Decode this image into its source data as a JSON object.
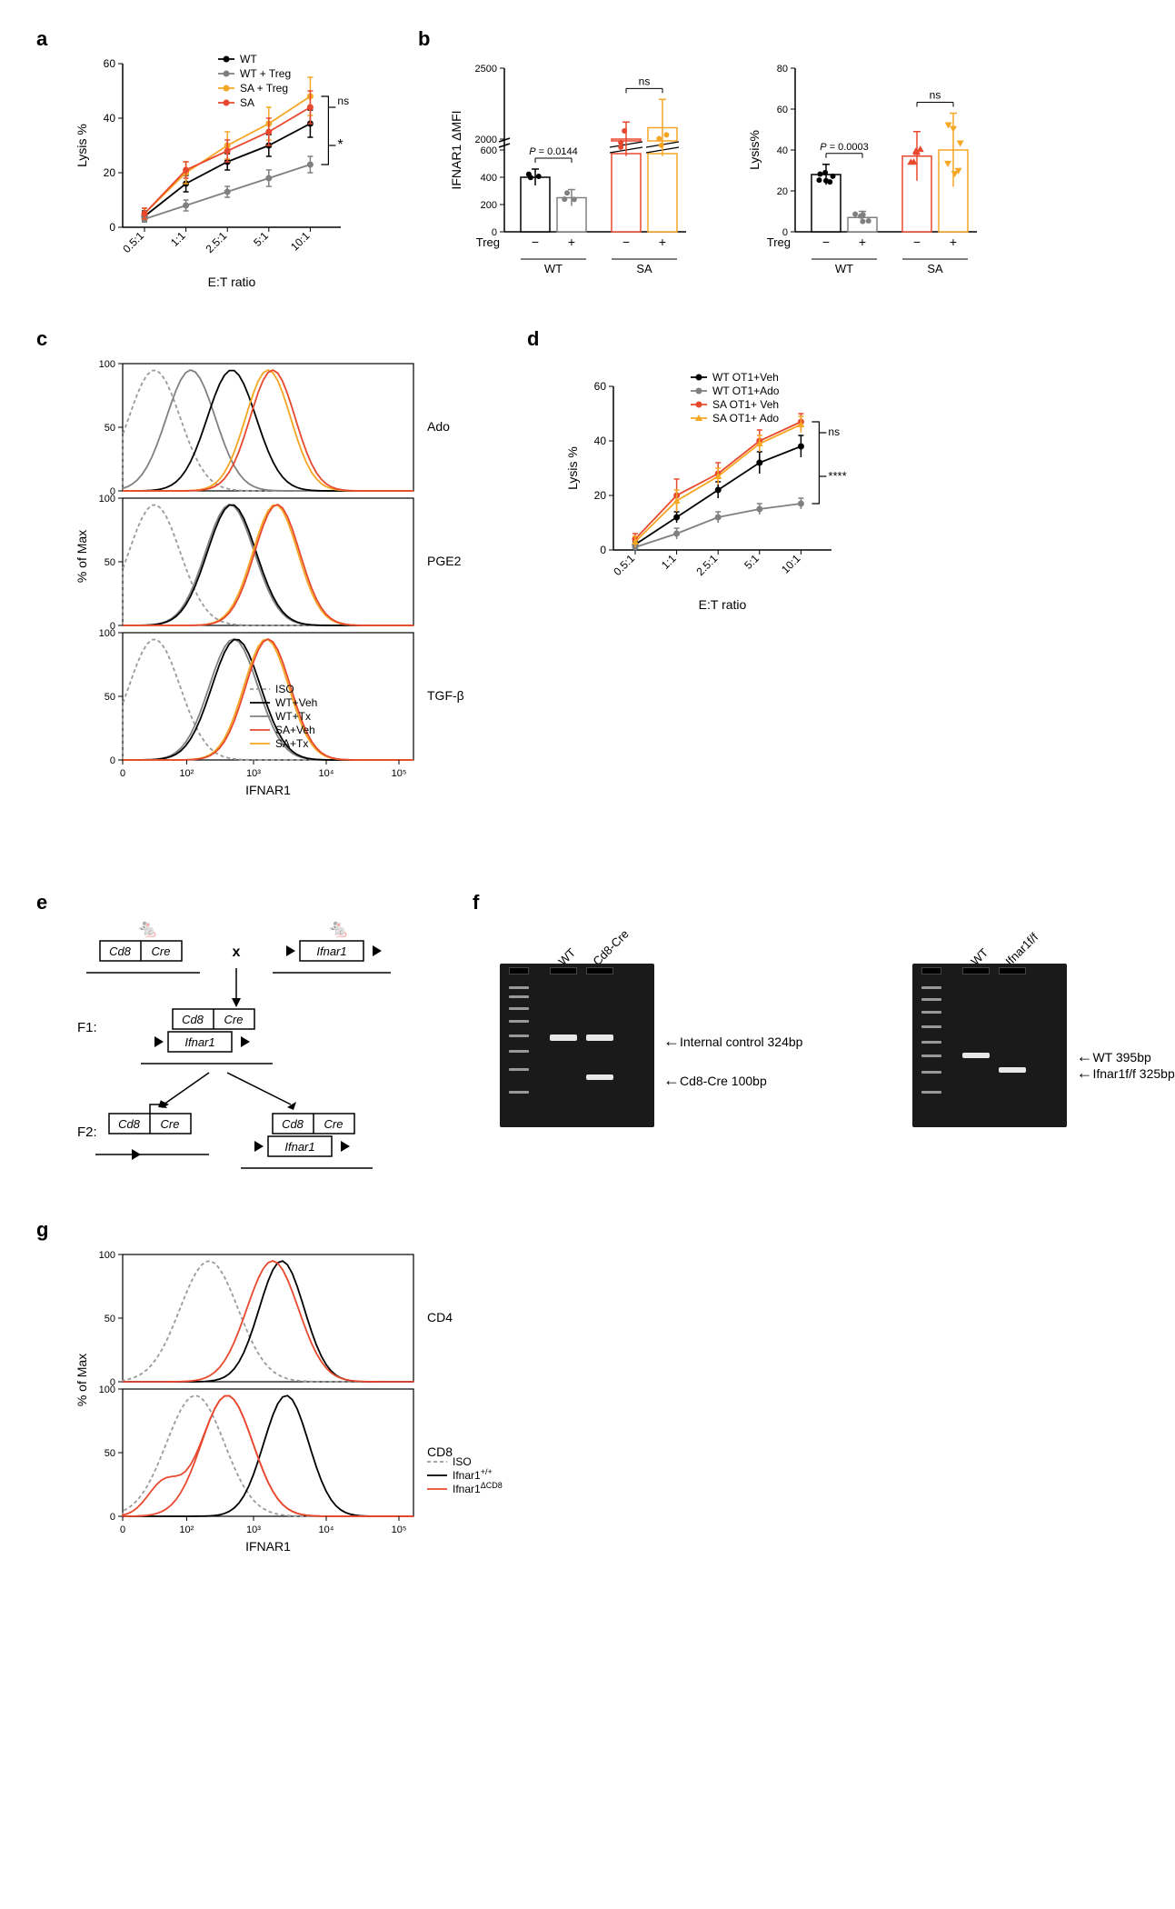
{
  "colors": {
    "wt": "#000000",
    "wt_treg": "#808080",
    "sa": "#e8492e",
    "sa_treg": "#f5a623",
    "iso": "#9a9a9a",
    "ifnar_wt": "#000000",
    "ifnar_ko": "#e8492e",
    "bar_outline": "#000000"
  },
  "panel_a": {
    "label": "a",
    "type": "line",
    "x_categories": [
      "0.5:1",
      "1:1",
      "2.5:1",
      "5:1",
      "10:1"
    ],
    "xlabel": "E:T ratio",
    "ylabel": "Lysis %",
    "ylim": [
      0,
      60
    ],
    "ytick_step": 20,
    "series": [
      {
        "name": "WT",
        "color": "#000000",
        "marker": "circle",
        "values": [
          4,
          16,
          24,
          30,
          38
        ],
        "err": [
          2,
          3,
          3,
          4,
          5
        ]
      },
      {
        "name": "WT + Treg",
        "color": "#808080",
        "marker": "circle",
        "values": [
          3,
          8,
          13,
          18,
          23
        ],
        "err": [
          1,
          2,
          2,
          3,
          3
        ]
      },
      {
        "name": "SA + Treg",
        "color": "#f5a623",
        "marker": "circle",
        "values": [
          5,
          20,
          30,
          38,
          48
        ],
        "err": [
          2,
          4,
          5,
          6,
          7
        ]
      },
      {
        "name": "SA",
        "color": "#e8492e",
        "marker": "circle",
        "values": [
          5,
          21,
          28,
          35,
          44
        ],
        "err": [
          2,
          3,
          4,
          5,
          6
        ]
      }
    ],
    "annotations": [
      {
        "text": "ns",
        "y_pos": "top"
      },
      {
        "text": "*",
        "y_pos": "bottom"
      }
    ]
  },
  "panel_b": {
    "label": "b",
    "left": {
      "type": "bar",
      "ylabel": "IFNAR1 ΔMFI",
      "ylim": [
        0,
        2500
      ],
      "yticks": [
        0,
        200,
        400,
        600,
        2000,
        2500
      ],
      "groups": [
        "WT",
        "SA"
      ],
      "sub": [
        "−",
        "+"
      ],
      "sub_label": "Treg",
      "bars": [
        {
          "group": "WT",
          "sub": "−",
          "value": 400,
          "err": 60,
          "edge": "#000000",
          "fill": "#ffffff",
          "points_color": "#000000"
        },
        {
          "group": "WT",
          "sub": "+",
          "value": 250,
          "err": 60,
          "edge": "#808080",
          "fill": "#ffffff",
          "points_color": "#808080"
        },
        {
          "group": "SA",
          "sub": "−",
          "value": 2000,
          "err": 120,
          "edge": "#e8492e",
          "fill": "#ffffff",
          "points_color": "#e8492e"
        },
        {
          "group": "SA",
          "sub": "+",
          "value": 2080,
          "err": 200,
          "edge": "#f5a623",
          "fill": "#ffffff",
          "points_color": "#f5a623"
        }
      ],
      "annotations": [
        {
          "group": "WT",
          "text": "P = 0.0144",
          "italic_P": true
        },
        {
          "group": "SA",
          "text": "ns"
        }
      ]
    },
    "right": {
      "type": "bar",
      "ylabel": "Lysis%",
      "ylim": [
        0,
        80
      ],
      "ytick_step": 20,
      "groups": [
        "WT",
        "SA"
      ],
      "sub": [
        "−",
        "+"
      ],
      "sub_label": "Treg",
      "bars": [
        {
          "group": "WT",
          "sub": "−",
          "value": 28,
          "err": 5,
          "edge": "#000000",
          "fill": "#ffffff",
          "points_color": "#000000"
        },
        {
          "group": "WT",
          "sub": "+",
          "value": 7,
          "err": 3,
          "edge": "#808080",
          "fill": "#ffffff",
          "points_color": "#808080"
        },
        {
          "group": "SA",
          "sub": "−",
          "value": 37,
          "err": 12,
          "edge": "#e8492e",
          "fill": "#ffffff",
          "points_color": "#e8492e",
          "marker": "triangle"
        },
        {
          "group": "SA",
          "sub": "+",
          "value": 40,
          "err": 18,
          "edge": "#f5a623",
          "fill": "#ffffff",
          "points_color": "#f5a623",
          "marker": "invtriangle"
        }
      ],
      "annotations": [
        {
          "group": "WT",
          "text": "P = 0.0003",
          "italic_P": true
        },
        {
          "group": "SA",
          "text": "ns"
        }
      ]
    }
  },
  "panel_c": {
    "label": "c",
    "type": "histogram-overlay",
    "xlabel": "IFNAR1",
    "ylabel": "% of Max",
    "ylim": [
      0,
      100
    ],
    "ytick_step": 50,
    "x_log_ticks": [
      "0",
      "10²",
      "10³",
      "10⁴",
      "10⁵"
    ],
    "rows": [
      {
        "title": "Ado"
      },
      {
        "title": "PGE2"
      },
      {
        "title": "TGF-β"
      }
    ],
    "legend": [
      {
        "name": "ISO",
        "color": "#9a9a9a",
        "dash": true
      },
      {
        "name": "WT+Veh",
        "color": "#000000"
      },
      {
        "name": "WT+Tx",
        "color": "#808080"
      },
      {
        "name": "SA+Veh",
        "color": "#e8492e"
      },
      {
        "name": "SA+Tx",
        "color": "#f5a623"
      }
    ]
  },
  "panel_d": {
    "label": "d",
    "type": "line",
    "x_categories": [
      "0.5:1",
      "1:1",
      "2.5:1",
      "5:1",
      "10:1"
    ],
    "xlabel": "E:T ratio",
    "ylabel": "Lysis %",
    "ylim": [
      0,
      60
    ],
    "ytick_step": 20,
    "series": [
      {
        "name": "WT OT1+Veh",
        "color": "#000000",
        "marker": "circle",
        "values": [
          2,
          12,
          22,
          32,
          38
        ],
        "err": [
          1,
          2,
          3,
          4,
          4
        ]
      },
      {
        "name": "WT OT1+Ado",
        "color": "#808080",
        "marker": "circle",
        "values": [
          1,
          6,
          12,
          15,
          17
        ],
        "err": [
          1,
          2,
          2,
          2,
          2
        ]
      },
      {
        "name": "SA OT1+ Veh",
        "color": "#e8492e",
        "marker": "circle",
        "values": [
          4,
          20,
          28,
          40,
          47
        ],
        "err": [
          2,
          6,
          4,
          4,
          3
        ]
      },
      {
        "name": "SA OT1+ Ado",
        "color": "#f5a623",
        "marker": "triangle",
        "values": [
          3,
          18,
          27,
          39,
          46
        ],
        "err": [
          2,
          4,
          3,
          3,
          3
        ]
      }
    ],
    "annotations": [
      {
        "text": "ns"
      },
      {
        "text": "****"
      }
    ]
  },
  "panel_e": {
    "label": "e",
    "genes": {
      "cd8cre": [
        "Cd8",
        "Cre"
      ],
      "ifnar1": [
        "Ifnar1"
      ]
    },
    "rows": [
      "F1:",
      "F2:"
    ],
    "cross_symbol": "x"
  },
  "panel_f": {
    "label": "f",
    "gels": [
      {
        "lanes": [
          "WT",
          "Cd8-Cre"
        ],
        "bands": [
          {
            "label": "Internal control 324bp",
            "y": 0.45
          },
          {
            "label": "Cd8-Cre 100bp",
            "y": 0.7
          }
        ]
      },
      {
        "lanes": [
          "WT",
          "Ifnar1f/f"
        ],
        "bands": [
          {
            "label": "WT 395bp",
            "y": 0.55
          },
          {
            "label": "Ifnar1f/f 325bp",
            "y": 0.65
          }
        ]
      }
    ]
  },
  "panel_g": {
    "label": "g",
    "type": "histogram-overlay",
    "xlabel": "IFNAR1",
    "ylabel": "% of Max",
    "ylim": [
      0,
      100
    ],
    "ytick_step": 50,
    "x_log_ticks": [
      "0",
      "10²",
      "10³",
      "10⁴",
      "10⁵"
    ],
    "rows": [
      {
        "title": "CD4"
      },
      {
        "title": "CD8"
      }
    ],
    "legend": [
      {
        "name": "ISO",
        "color": "#9a9a9a",
        "dash": true
      },
      {
        "name": "Ifnar1+/+",
        "color": "#000000",
        "label": "Ifnar1⁺/⁺"
      },
      {
        "name": "Ifnar1ΔCD8",
        "color": "#e8492e",
        "label": "Ifnar1ᐞCD8",
        "sup": "ΔCD8"
      }
    ]
  }
}
